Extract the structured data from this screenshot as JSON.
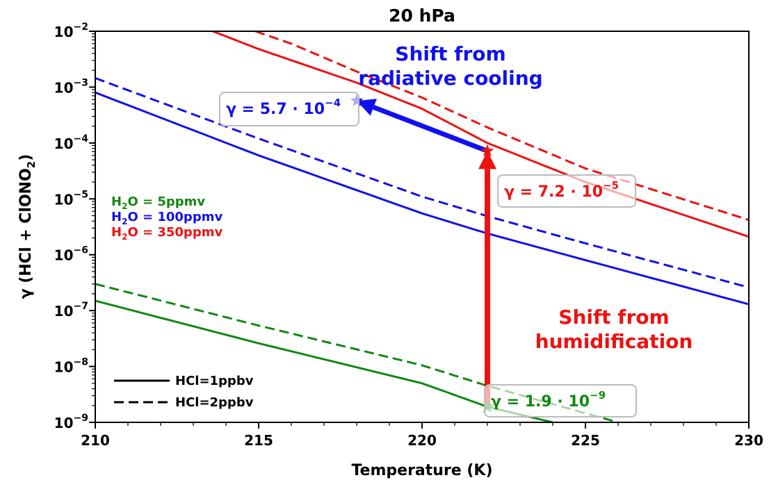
{
  "chart_data": {
    "type": "line",
    "title": "20 hPa",
    "xlabel": "Temperature (K)",
    "ylabel_prefix": "γ (HCl + ClONO",
    "ylabel_sub": "2",
    "ylabel_suffix": ")",
    "xlim": [
      210,
      230
    ],
    "ylim": [
      1e-09,
      0.01
    ],
    "yscale": "log",
    "xticks": [
      210,
      215,
      220,
      225,
      230
    ],
    "xtick_labels": [
      "210",
      "215",
      "220",
      "225",
      "230"
    ],
    "yticks": [
      {
        "base": "10",
        "exp": "−9"
      },
      {
        "base": "10",
        "exp": "−8"
      },
      {
        "base": "10",
        "exp": "−7"
      },
      {
        "base": "10",
        "exp": "−6"
      },
      {
        "base": "10",
        "exp": "−5"
      },
      {
        "base": "10",
        "exp": "−4"
      },
      {
        "base": "10",
        "exp": "−3"
      },
      {
        "base": "10",
        "exp": "−2"
      }
    ],
    "grid": false,
    "series": [
      {
        "water": "5ppmv",
        "hcl": "1ppbv",
        "color": "#118811",
        "dash": false,
        "points": [
          [
            210,
            1.5e-07
          ],
          [
            215,
            2.6e-08
          ],
          [
            220,
            5e-09
          ],
          [
            222,
            1.9e-09
          ],
          [
            224,
            1e-09
          ]
        ]
      },
      {
        "water": "5ppmv",
        "hcl": "2ppbv",
        "color": "#118811",
        "dash": true,
        "points": [
          [
            210,
            3e-07
          ],
          [
            215,
            5.4e-08
          ],
          [
            220,
            1.05e-08
          ],
          [
            222,
            4.5e-09
          ],
          [
            226,
            1e-09
          ]
        ]
      },
      {
        "water": "100ppmv",
        "hcl": "1ppbv",
        "color": "#1111ee",
        "dash": false,
        "points": [
          [
            210,
            0.0008
          ],
          [
            215,
            6e-05
          ],
          [
            220,
            5.5e-06
          ],
          [
            222,
            2.4e-06
          ],
          [
            225,
            8e-07
          ],
          [
            230,
            1.3e-07
          ]
        ]
      },
      {
        "water": "100ppmv",
        "hcl": "2ppbv",
        "color": "#1111ee",
        "dash": true,
        "points": [
          [
            210,
            0.00145
          ],
          [
            215,
            0.00012
          ],
          [
            220,
            1.1e-05
          ],
          [
            222,
            4.9e-06
          ],
          [
            225,
            1.6e-06
          ],
          [
            230,
            2.6e-07
          ]
        ]
      },
      {
        "water": "350ppmv",
        "hcl": "1ppbv",
        "color": "#ee1111",
        "dash": false,
        "points": [
          [
            213.6,
            0.01
          ],
          [
            215,
            0.0048
          ],
          [
            218,
            0.0012
          ],
          [
            220,
            0.00041
          ],
          [
            222,
            0.0001
          ],
          [
            225,
            2e-05
          ],
          [
            230,
            2.1e-06
          ]
        ]
      },
      {
        "water": "350ppmv",
        "hcl": "2ppbv",
        "color": "#ee1111",
        "dash": true,
        "points": [
          [
            214.9,
            0.01
          ],
          [
            216,
            0.006
          ],
          [
            218,
            0.0019
          ],
          [
            220,
            0.00065
          ],
          [
            222,
            0.00019
          ],
          [
            225,
            3.5e-05
          ],
          [
            230,
            4.2e-06
          ]
        ]
      }
    ],
    "markers": [
      {
        "x": 222,
        "y": 1.9e-09,
        "color": "#118811"
      },
      {
        "x": 222,
        "y": 7.2e-05,
        "color": "#ee1111"
      },
      {
        "x": 218,
        "y": 0.00057,
        "color": "#1111ee"
      }
    ],
    "arrows": [
      {
        "from": [
          222,
          1.9e-09
        ],
        "to": [
          222,
          7.2e-05
        ],
        "color": "#ee1111"
      },
      {
        "from": [
          222,
          7.2e-05
        ],
        "to": [
          218,
          0.00057
        ],
        "color": "#1111ee"
      }
    ],
    "value_boxes": [
      {
        "prefix": "γ = 1.9 · 10",
        "exp": "−9",
        "color": "#118811"
      },
      {
        "prefix": "γ = 7.2 · 10",
        "exp": "−5",
        "color": "#ee1111"
      },
      {
        "prefix": "γ = 5.7 · 10",
        "exp": "−4",
        "color": "#1111ee"
      }
    ],
    "annotations": [
      {
        "lines": [
          "Shift from",
          "radiative cooling"
        ],
        "color": "#1111ee"
      },
      {
        "lines": [
          "Shift from",
          "humidification"
        ],
        "color": "#ee1111"
      }
    ],
    "legend_colors": [
      {
        "prefix": "H",
        "sub": "2",
        "suffix": "O = 5ppmv",
        "color": "#118811"
      },
      {
        "prefix": "H",
        "sub": "2",
        "suffix": "O = 100ppmv",
        "color": "#1111ee"
      },
      {
        "prefix": "H",
        "sub": "2",
        "suffix": "O = 350ppmv",
        "color": "#ee1111"
      }
    ],
    "legend_styles": [
      {
        "label": "HCl=1ppbv",
        "dash": false
      },
      {
        "label": "HCl=2ppbv",
        "dash": true
      }
    ]
  }
}
